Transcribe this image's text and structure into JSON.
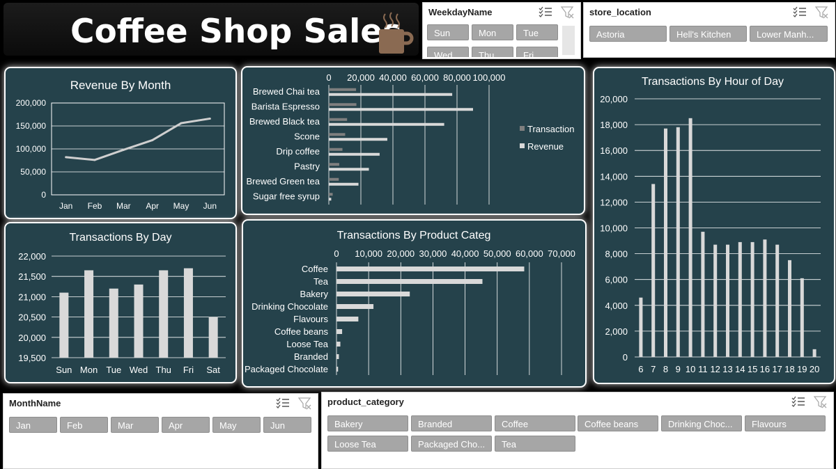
{
  "header": {
    "title": "Coffee Shop Sales",
    "icon": "coffee-cup-icon"
  },
  "colors": {
    "panel": "#25424b",
    "bar": "#d9d9d9",
    "bar_dark": "#7f7f7f",
    "grid": "#ffffff",
    "slicer_btn": "#a6a6a6"
  },
  "slicers": {
    "weekday": {
      "title": "WeekdayName",
      "items": [
        "Sun",
        "Mon",
        "Tue",
        "Wed",
        "Thu",
        "Fri"
      ]
    },
    "store": {
      "title": "store_location",
      "items": [
        "Astoria",
        "Hell's Kitchen",
        "Lower Manh..."
      ]
    },
    "month": {
      "title": "MonthName",
      "items": [
        "Jan",
        "Feb",
        "Mar",
        "Apr",
        "May",
        "Jun"
      ]
    },
    "category": {
      "title": "product_category",
      "items": [
        "Bakery",
        "Branded",
        "Coffee",
        "Coffee beans",
        "Drinking Choc...",
        "Flavours",
        "Loose Tea",
        "Packaged Cho...",
        "Tea"
      ]
    }
  },
  "chart_data": [
    {
      "id": "revenue_by_month",
      "type": "line",
      "title": "Revenue By Month",
      "categories": [
        "Jan",
        "Feb",
        "Mar",
        "Apr",
        "May",
        "Jun"
      ],
      "values": [
        82000,
        76000,
        98000,
        119000,
        156000,
        166000
      ],
      "ylim": [
        0,
        200000
      ],
      "yticks": [
        "0",
        "50,000",
        "100,000",
        "150,000",
        "200,000"
      ],
      "grid": true
    },
    {
      "id": "transactions_by_day",
      "type": "bar",
      "title": "Transactions By Day",
      "categories": [
        "Sun",
        "Mon",
        "Tue",
        "Wed",
        "Thu",
        "Fri",
        "Sat"
      ],
      "values": [
        21100,
        21650,
        21200,
        21300,
        21650,
        21700,
        20500
      ],
      "ylim": [
        19500,
        22000
      ],
      "yticks": [
        "19,500",
        "20,000",
        "20,500",
        "21,000",
        "21,500",
        "22,000"
      ],
      "grid": true
    },
    {
      "id": "product_type",
      "type": "bar",
      "orientation": "horizontal",
      "title": "",
      "categories": [
        "Brewed Chai tea",
        "Barista Espresso",
        "Brewed Black tea",
        "Scone",
        "Drip coffee",
        "Pastry",
        "Brewed Green tea",
        "Sugar free syrup"
      ],
      "visible_labels": [
        "Brewed Chai tea",
        "Barista Espresso",
        "Brewed Black tea",
        "Scone",
        "Drip coffee",
        "Pastry",
        "Brewed Green tea",
        "Sugar free syrup"
      ],
      "series": [
        {
          "name": "Transaction",
          "values": [
            17000,
            17200,
            11400,
            10200,
            8500,
            6500,
            6200,
            2400
          ]
        },
        {
          "name": "Revenue",
          "values": [
            77000,
            90000,
            72000,
            36500,
            31700,
            25000,
            18500,
            1500
          ]
        }
      ],
      "xlim": [
        0,
        100000
      ],
      "xticks": [
        "0",
        "20,000",
        "40,000",
        "60,000",
        "80,000",
        "100,000"
      ],
      "legend": "right",
      "grid": true
    },
    {
      "id": "transactions_by_category",
      "type": "bar",
      "orientation": "horizontal",
      "title": "Transactions By Product Categ",
      "categories": [
        "Coffee",
        "Tea",
        "Bakery",
        "Drinking Chocolate",
        "Flavours",
        "Coffee beans",
        "Loose Tea",
        "Branded",
        "Packaged Chocolate"
      ],
      "values": [
        58400,
        45400,
        22800,
        11500,
        6800,
        1750,
        1200,
        750,
        490
      ],
      "xlim": [
        0,
        70000
      ],
      "xticks": [
        "0",
        "10,000",
        "20,000",
        "30,000",
        "40,000",
        "50,000",
        "60,000",
        "70,000"
      ],
      "grid": true
    },
    {
      "id": "transactions_by_hour",
      "type": "bar",
      "title": "Transactions By  Hour of Day",
      "categories": [
        "6",
        "7",
        "8",
        "9",
        "10",
        "11",
        "12",
        "13",
        "14",
        "15",
        "16",
        "17",
        "18",
        "19",
        "20"
      ],
      "values": [
        4600,
        13400,
        17700,
        17800,
        18500,
        9700,
        8700,
        8700,
        8900,
        8900,
        9100,
        8700,
        7500,
        6100,
        600
      ],
      "ylim": [
        0,
        20000
      ],
      "yticks": [
        "0",
        "2,000",
        "4,000",
        "6,000",
        "8,000",
        "10,000",
        "12,000",
        "14,000",
        "16,000",
        "18,000",
        "20,000"
      ],
      "grid": true
    }
  ]
}
